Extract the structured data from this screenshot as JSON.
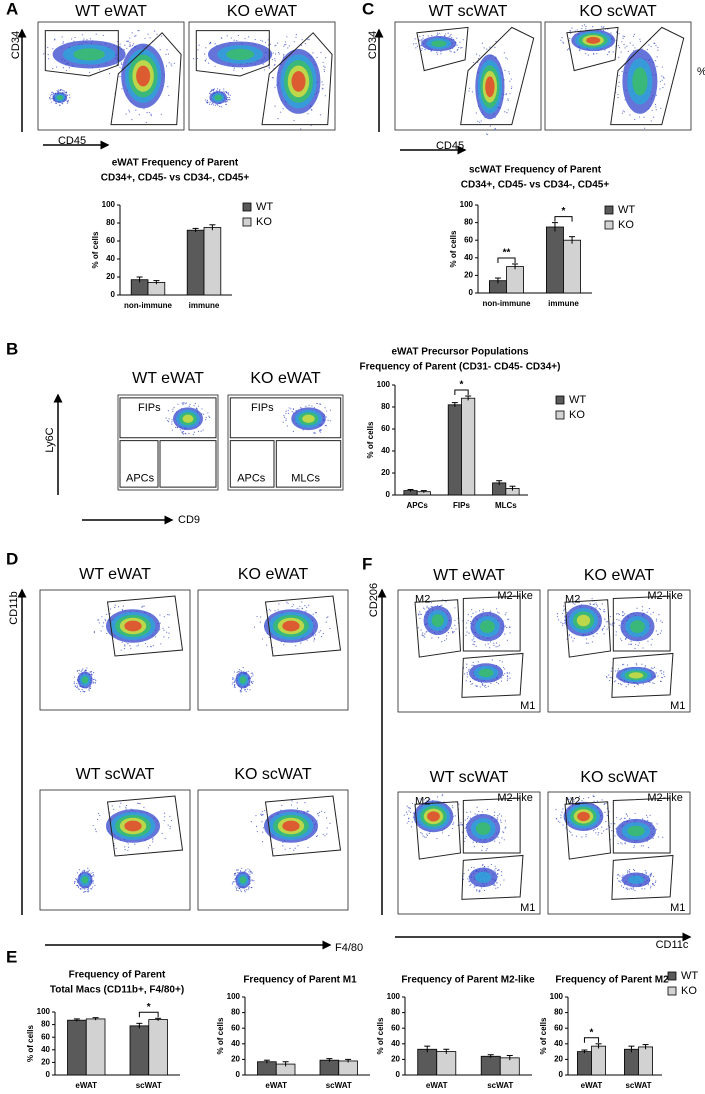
{
  "stray_label": "%",
  "panels": {
    "A": {
      "letter": "A",
      "plots": [
        "WT eWAT",
        "KO eWAT"
      ],
      "y_axis": "CD34",
      "x_axis": "CD45"
    },
    "C": {
      "letter": "C",
      "plots": [
        "WT scWAT",
        "KO scWAT"
      ],
      "y_axis": "CD34",
      "x_axis": "CD45"
    },
    "B": {
      "letter": "B",
      "plots": [
        "WT eWAT",
        "KO eWAT"
      ],
      "y_axis": "Ly6C",
      "x_axis": "CD9",
      "gates": [
        [
          "FIPs",
          "APCs"
        ],
        [
          "FIPs",
          "APCs",
          "MLCs"
        ]
      ]
    },
    "D": {
      "letter": "D",
      "plots": [
        "WT eWAT",
        "KO eWAT",
        "WT scWAT",
        "KO scWAT"
      ],
      "y_axis": "CD11b",
      "x_axis": "F4/80"
    },
    "F": {
      "letter": "F",
      "plots": [
        "WT eWAT",
        "KO eWAT",
        "WT scWAT",
        "KO scWAT"
      ],
      "y_axis": "CD206",
      "x_axis": "CD11c",
      "gates": [
        "M2",
        "M2-like",
        "M1"
      ]
    },
    "E": {
      "letter": "E"
    }
  },
  "chart_data": [
    {
      "type": "bar",
      "title": "eWAT Frequency of Parent",
      "subtitle": "CD34+, CD45- vs CD34-, CD45+",
      "ylabel": "% of cells",
      "categories": [
        "non-immune",
        "immune"
      ],
      "series": [
        {
          "name": "WT",
          "color": "#5a5a5a",
          "values": [
            17,
            72
          ],
          "errors": [
            3,
            2
          ]
        },
        {
          "name": "KO",
          "color": "#d2d2d2",
          "values": [
            14,
            75
          ],
          "errors": [
            2,
            3
          ]
        }
      ],
      "ylim": [
        0,
        100
      ],
      "yticks": [
        0,
        20,
        40,
        60,
        80,
        100
      ],
      "legend": "right"
    },
    {
      "type": "bar",
      "title": "scWAT Frequency of Parent",
      "subtitle": "CD34+, CD45- vs CD34-, CD45+",
      "ylabel": "% of cells",
      "categories": [
        "non-immune",
        "immune"
      ],
      "series": [
        {
          "name": "WT",
          "color": "#5a5a5a",
          "values": [
            14,
            75
          ],
          "errors": [
            3,
            5
          ]
        },
        {
          "name": "KO",
          "color": "#d2d2d2",
          "values": [
            30,
            60
          ],
          "errors": [
            3,
            4
          ]
        }
      ],
      "ylim": [
        0,
        100
      ],
      "yticks": [
        0,
        20,
        40,
        60,
        80,
        100
      ],
      "legend": "right",
      "annotations": [
        {
          "text": "**",
          "category": "non-immune"
        },
        {
          "text": "*",
          "category": "immune"
        }
      ]
    },
    {
      "type": "bar",
      "title": "eWAT Precursor Populations",
      "subtitle": "Frequency of Parent (CD31- CD45- CD34+)",
      "ylabel": "% of cells",
      "categories": [
        "APCs",
        "FIPs",
        "MLCs"
      ],
      "series": [
        {
          "name": "WT",
          "color": "#5a5a5a",
          "values": [
            4,
            82,
            11
          ],
          "errors": [
            1,
            2,
            2
          ]
        },
        {
          "name": "KO",
          "color": "#d2d2d2",
          "values": [
            3,
            88,
            6
          ],
          "errors": [
            1,
            2,
            2
          ]
        }
      ],
      "ylim": [
        0,
        100
      ],
      "yticks": [
        0,
        20,
        40,
        60,
        80,
        100
      ],
      "legend": "right",
      "annotations": [
        {
          "text": "*",
          "category": "FIPs"
        }
      ]
    },
    {
      "type": "bar",
      "title": "Frequency of Parent",
      "subtitle": "Total Macs (CD11b+, F4/80+)",
      "ylabel": "% of cells",
      "categories": [
        "eWAT",
        "scWAT"
      ],
      "series": [
        {
          "name": "WT",
          "color": "#5a5a5a",
          "values": [
            87,
            78
          ],
          "errors": [
            2,
            4
          ]
        },
        {
          "name": "KO",
          "color": "#d2d2d2",
          "values": [
            89,
            88
          ],
          "errors": [
            2,
            2
          ]
        }
      ],
      "ylim": [
        0,
        100
      ],
      "yticks": [
        0,
        20,
        40,
        60,
        80,
        100
      ],
      "annotations": [
        {
          "text": "*",
          "category": "scWAT"
        }
      ]
    },
    {
      "type": "bar",
      "title": "Frequency of Parent M1",
      "ylabel": "% of cells",
      "categories": [
        "eWAT",
        "scWAT"
      ],
      "series": [
        {
          "name": "WT",
          "color": "#5a5a5a",
          "values": [
            17,
            19
          ],
          "errors": [
            2,
            2
          ]
        },
        {
          "name": "KO",
          "color": "#d2d2d2",
          "values": [
            14,
            18
          ],
          "errors": [
            3,
            2
          ]
        }
      ],
      "ylim": [
        0,
        100
      ],
      "yticks": [
        0,
        20,
        40,
        60,
        80,
        100
      ]
    },
    {
      "type": "bar",
      "title": "Frequency of Parent M2-like",
      "ylabel": "% of cells",
      "categories": [
        "eWAT",
        "scWAT"
      ],
      "series": [
        {
          "name": "WT",
          "color": "#5a5a5a",
          "values": [
            33,
            24
          ],
          "errors": [
            4,
            2
          ]
        },
        {
          "name": "KO",
          "color": "#d2d2d2",
          "values": [
            30,
            22
          ],
          "errors": [
            3,
            3
          ]
        }
      ],
      "ylim": [
        0,
        100
      ],
      "yticks": [
        0,
        20,
        40,
        60,
        80,
        100
      ]
    },
    {
      "type": "bar",
      "title": "Frequency of Parent M2",
      "ylabel": "% of cells",
      "categories": [
        "eWAT",
        "scWAT"
      ],
      "series": [
        {
          "name": "WT",
          "color": "#5a5a5a",
          "values": [
            30,
            33
          ],
          "errors": [
            2,
            4
          ]
        },
        {
          "name": "KO",
          "color": "#d2d2d2",
          "values": [
            37,
            36
          ],
          "errors": [
            3,
            3
          ]
        }
      ],
      "ylim": [
        0,
        100
      ],
      "yticks": [
        0,
        20,
        40,
        60,
        80,
        100
      ],
      "legend": "right",
      "annotations": [
        {
          "text": "*",
          "category": "eWAT"
        }
      ]
    }
  ]
}
